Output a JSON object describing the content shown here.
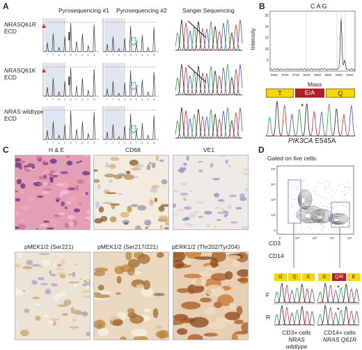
{
  "panels": {
    "A": {
      "letter": "A",
      "column_headers": [
        "Pyrosequencing #1",
        "Pyrosequencing #2",
        "Sanger Sequencing"
      ],
      "rows": [
        {
          "gene": "NRAS",
          "rest": "Q61R",
          "line2": "ECD"
        },
        {
          "gene": "NRAS",
          "rest": "Q61K",
          "line2": "ECD"
        },
        {
          "gene": "NRAS",
          "rest": " wildtype",
          "line2": "ECD"
        }
      ],
      "pyro_bases": [
        "T",
        "T",
        "A",
        "C",
        "G",
        "T",
        "A",
        "C",
        "G"
      ]
    },
    "B": {
      "letter": "B",
      "peak_labels": "CAG",
      "ylabel": "Intensity",
      "xlabel": "Mass",
      "xticks": [
        "5650",
        "5700",
        "5750",
        "5800",
        "5850",
        "5900",
        "5950",
        "6000"
      ],
      "yticks": [
        "25",
        "20",
        "15",
        "10",
        "5"
      ],
      "codons": [
        "T",
        "E/A",
        "Q"
      ],
      "star": "*",
      "caption_gene": "PIK3CA",
      "caption_rest": " E545A"
    },
    "C": {
      "letter": "C",
      "stains": [
        "H & E",
        "CD68",
        "VE1",
        "pMEK1/2 (Ser221)",
        "pMEK1/2 (Ser217/221)",
        "pERK1/2 (Thr202/Tyr204)"
      ]
    },
    "D": {
      "letter": "D",
      "title": "Gated on live cells:",
      "ylabel": "CD3",
      "xlabel": "CD14",
      "axis_ticks": [
        "10⁵",
        "10⁴",
        "10³",
        "10²",
        "0"
      ],
      "x_ticks": [
        "0",
        "10²",
        "10³",
        "10⁴",
        "10⁵"
      ],
      "codons_left": [
        "G",
        "Q",
        "E"
      ],
      "codons_right": [
        "G",
        "Q/R",
        "E"
      ],
      "strand_f": "F",
      "strand_r": "R",
      "star": "*",
      "left_caption1": "CD3+ cells",
      "left_caption2_gene": "NRAS",
      "left_caption2_rest": " wildtype",
      "right_caption1": "CD14+ cells",
      "right_caption2_gene": "NRAS",
      "right_caption2_rest": " Q61R"
    }
  },
  "colors": {
    "codon_bg": "#f5d800",
    "codon_mut": "#b51c2a",
    "trace_green": "#2f9b3a",
    "trace_blue": "#3d51c4",
    "trace_red": "#cf2d2d",
    "trace_black": "#222222"
  }
}
